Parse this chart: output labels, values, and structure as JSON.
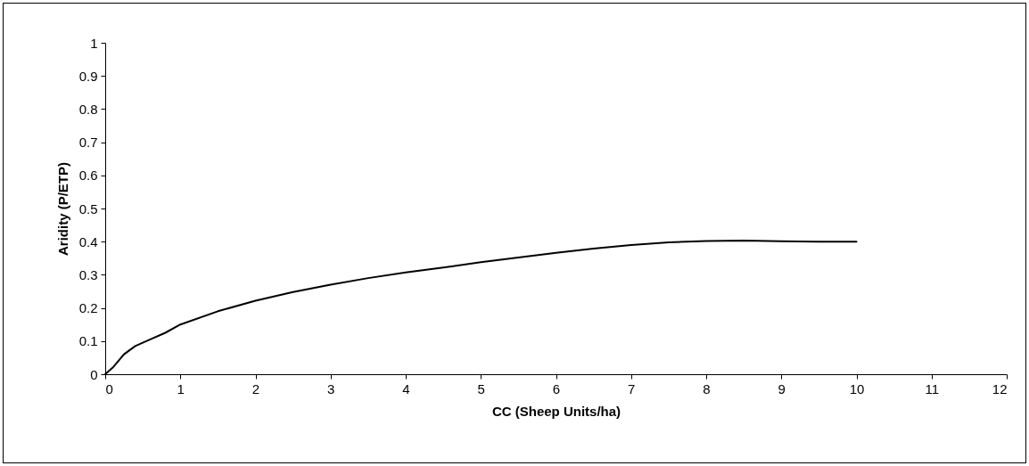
{
  "chart_data": {
    "type": "line",
    "xlabel": "CC (Sheep Units/ha)",
    "ylabel": "Aridity (P/ETP)",
    "x": [
      0,
      0.1,
      0.25,
      0.4,
      0.6,
      0.8,
      1,
      1.5,
      2,
      2.5,
      3,
      3.5,
      4,
      4.5,
      5,
      5.5,
      6,
      6.5,
      7,
      7.5,
      8,
      8.5,
      9,
      9.5,
      10
    ],
    "series": [
      {
        "color": "#000000",
        "values": [
          0,
          0.02,
          0.06,
          0.085,
          0.105,
          0.125,
          0.15,
          0.19,
          0.222,
          0.248,
          0.27,
          0.29,
          0.307,
          0.322,
          0.338,
          0.352,
          0.366,
          0.379,
          0.39,
          0.398,
          0.402,
          0.403,
          0.401,
          0.4,
          0.4
        ]
      }
    ],
    "xlim": [
      0,
      12
    ],
    "xticks": [
      0,
      1,
      2,
      3,
      4,
      5,
      6,
      7,
      8,
      9,
      10,
      11,
      12
    ],
    "ylim": [
      0,
      1
    ],
    "yticks": [
      0,
      0.1,
      0.2,
      0.3,
      0.4,
      0.5,
      0.6,
      0.7,
      0.8,
      0.9,
      1
    ],
    "grid": false,
    "legend": false,
    "marker": "none",
    "line_style": "solid"
  }
}
